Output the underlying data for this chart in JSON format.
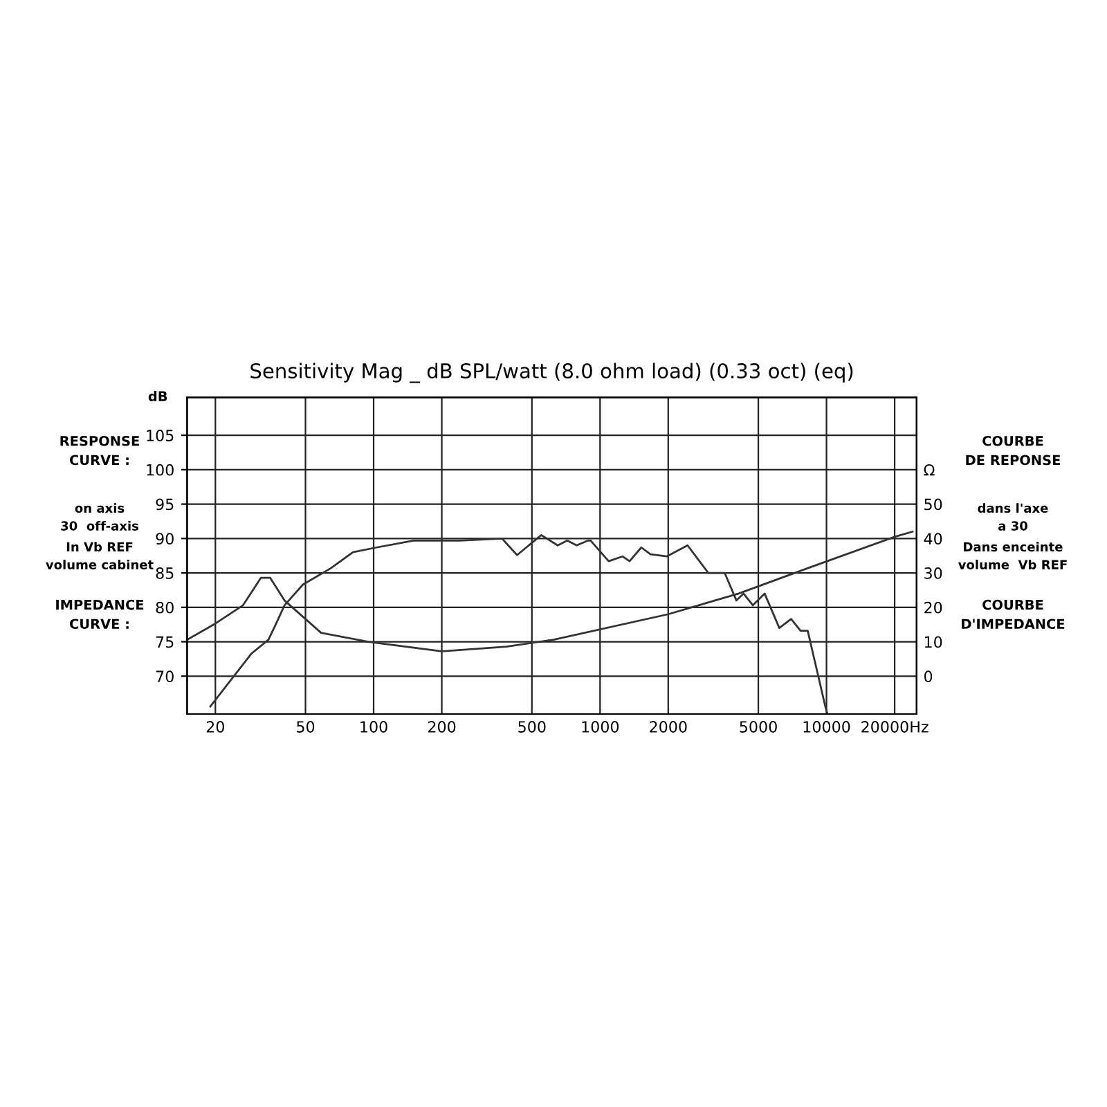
{
  "chart_data": {
    "type": "line",
    "title": "Sensitivity Mag _ dB SPL/watt (8.0 ohm load) (0.33 oct) (eq)",
    "ylabel": "dB",
    "log": "x",
    "xlim": [
      15,
      25000
    ],
    "xticks": [
      20,
      50,
      100,
      200,
      500,
      1000,
      2000,
      5000,
      10000,
      {
        "value": 20000,
        "label": "20000Hz"
      }
    ],
    "ylim": [
      64.5,
      110.5
    ],
    "yticks": [
      70,
      75,
      80,
      85,
      90,
      95,
      100,
      105
    ],
    "y2lim": [
      -11,
      81
    ],
    "y2ticks": [
      0,
      10,
      20,
      30,
      40,
      50,
      {
        "value": 60,
        "label": "Ω"
      }
    ],
    "grid": true,
    "marker": "none",
    "line_style": "solid",
    "series": [
      {
        "color": "#333333",
        "x": [
          19,
          28.9,
          34.3,
          36.7,
          40.4,
          48.7,
          64.8,
          81,
          103,
          150,
          240,
          369,
          430,
          550,
          650,
          716,
          788,
          884,
          909,
          1091,
          1256,
          1350,
          1521,
          1670,
          1970,
          2435,
          3007,
          3551,
          4000,
          4302,
          4730,
          5330,
          6190,
          6980,
          7680,
          8260,
          9880,
          10100
        ],
        "values": [
          65.6,
          73.3,
          75.3,
          77.3,
          80.3,
          83.3,
          85.7,
          88.0,
          88.7,
          89.7,
          89.7,
          90.0,
          87.6,
          90.5,
          89.0,
          89.7,
          89.0,
          89.7,
          89.7,
          86.7,
          87.4,
          86.7,
          88.7,
          87.7,
          87.4,
          89.0,
          85.0,
          85.0,
          81.0,
          82.0,
          80.3,
          82.0,
          77.0,
          78.3,
          76.6,
          76.6,
          65.6,
          64.5
        ]
      },
      {
        "color": "#333333",
        "axis": "y2",
        "x": [
          15,
          19.9,
          26.5,
          31.8,
          34.9,
          40.4,
          58.6,
          94.8,
          200,
          386,
          623,
          2000,
          4093,
          8280,
          20000,
          24000
        ],
        "values": [
          10.6,
          15.2,
          20.6,
          28.6,
          28.6,
          22,
          12.6,
          10,
          7.2,
          8.6,
          10.6,
          18,
          24,
          31.4,
          40.5,
          42
        ]
      }
    ],
    "annotations": [
      "RESPONSE\nCURVE :",
      "on axis\n30  off-axis",
      "In Vb REF\nvolume cabinet",
      "IMPEDANCE\nCURVE :",
      "COURBE\nDE REPONSE",
      "dans l'axe\na 30",
      "Dans enceinte\nvolume  Vb REF",
      "COURBE\nD'IMPEDANCE"
    ]
  }
}
